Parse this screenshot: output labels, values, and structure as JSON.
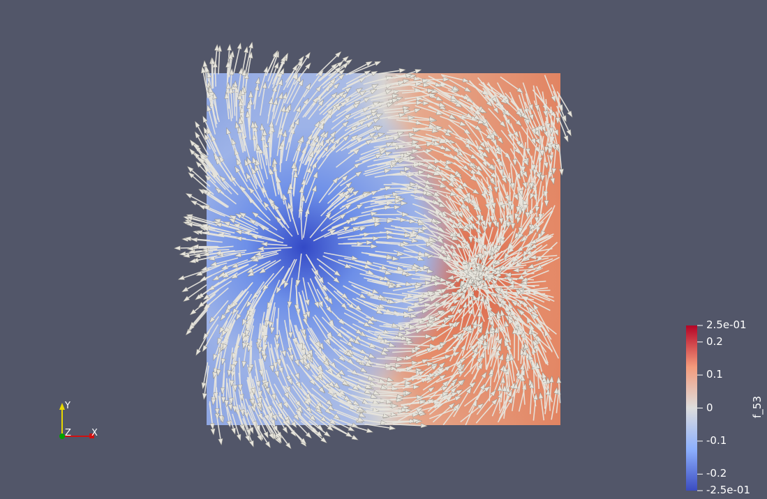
{
  "scene": {
    "background_color": "#525669",
    "glyph_color": "#e6e4dc"
  },
  "field": {
    "sink_value": -0.25,
    "source_value": 0.25
  },
  "colorbar": {
    "title": "f_53",
    "colors": [
      "#b40426",
      "#f49a7b",
      "#dddddd",
      "#8db0fe",
      "#3b4cc0"
    ],
    "ticks": [
      {
        "label": "2.5e-01",
        "value": 0.25
      },
      {
        "label": "0.2",
        "value": 0.2
      },
      {
        "label": "0.1",
        "value": 0.1
      },
      {
        "label": "0",
        "value": 0
      },
      {
        "label": "-0.1",
        "value": -0.1
      },
      {
        "label": "-0.2",
        "value": -0.2
      },
      {
        "label": "-2.5e-01",
        "value": -0.25
      }
    ]
  },
  "orientation_axes": {
    "y_label": "Y",
    "z_label": "Z",
    "x_label": "X",
    "y_color": "#e8d800",
    "x_color": "#d01010",
    "z_color": "#00a000"
  }
}
